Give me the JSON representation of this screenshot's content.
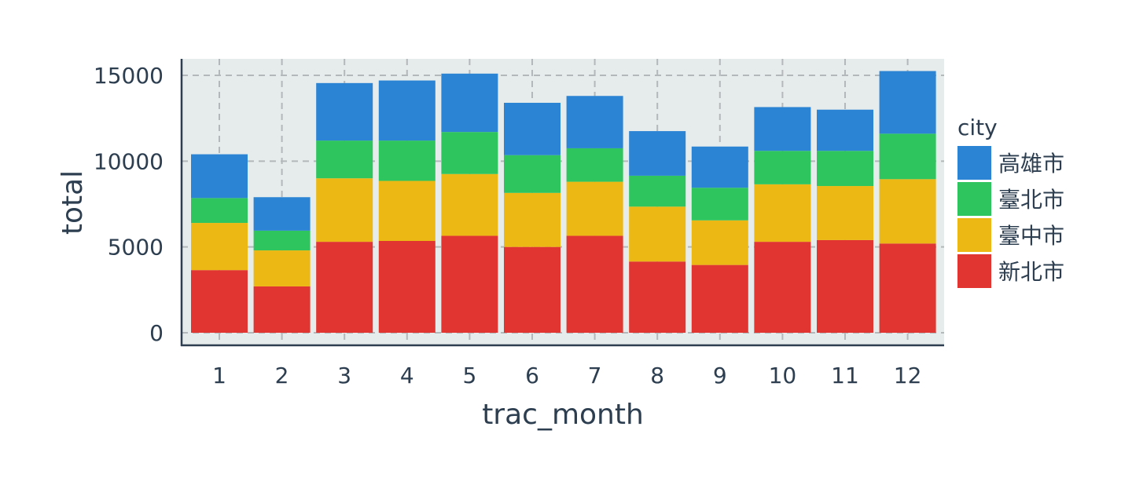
{
  "chart_data": {
    "type": "bar",
    "stacked": true,
    "title": "",
    "xlabel": "trac_month",
    "ylabel": "total",
    "ylim": [
      0,
      16000
    ],
    "yticks": [
      "0",
      "5000",
      "10000",
      "15000"
    ],
    "grid": true,
    "legend_title": "city",
    "legend_position": "right",
    "categories": [
      "1",
      "2",
      "3",
      "4",
      "5",
      "6",
      "7",
      "8",
      "9",
      "10",
      "11",
      "12"
    ],
    "series": [
      {
        "name": "新北市",
        "color": "#E03530",
        "values": [
          3650,
          2700,
          5300,
          5350,
          5650,
          5000,
          5650,
          4150,
          3950,
          5300,
          5400,
          5200
        ]
      },
      {
        "name": "臺中市",
        "color": "#ECB914",
        "values": [
          2750,
          2100,
          3700,
          3500,
          3600,
          3150,
          3150,
          3200,
          2600,
          3350,
          3150,
          3750
        ]
      },
      {
        "name": "臺北市",
        "color": "#2EC55E",
        "values": [
          1450,
          1150,
          2200,
          2350,
          2450,
          2200,
          1950,
          1800,
          1900,
          1950,
          2050,
          2650
        ]
      },
      {
        "name": "高雄市",
        "color": "#2C84D4",
        "values": [
          2550,
          1950,
          3350,
          3500,
          3400,
          3050,
          3050,
          2600,
          2400,
          2550,
          2400,
          3650
        ]
      }
    ]
  }
}
